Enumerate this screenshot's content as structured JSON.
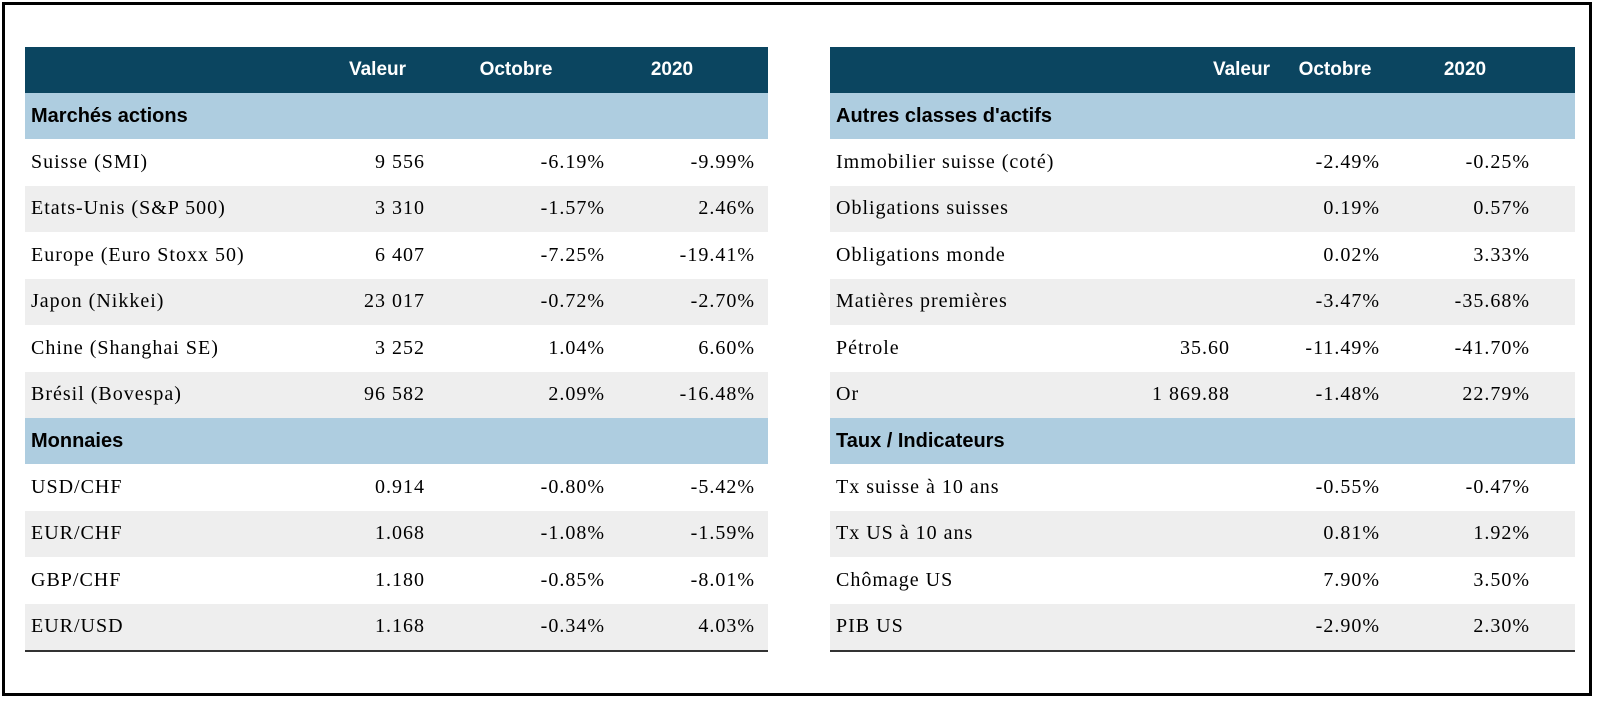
{
  "headers": {
    "value": "Valeur",
    "month": "Octobre",
    "year": "2020"
  },
  "left": {
    "sections": [
      {
        "title": "Marchés actions",
        "rows": [
          {
            "label": "Suisse (SMI)",
            "value": "9 556",
            "month": "-6.19%",
            "year": "-9.99%"
          },
          {
            "label": "Etats-Unis (S&P 500)",
            "value": "3 310",
            "month": "-1.57%",
            "year": "2.46%"
          },
          {
            "label": "Europe (Euro Stoxx 50)",
            "value": "6 407",
            "month": "-7.25%",
            "year": "-19.41%"
          },
          {
            "label": "Japon (Nikkei)",
            "value": "23 017",
            "month": "-0.72%",
            "year": "-2.70%"
          },
          {
            "label": "Chine (Shanghai SE)",
            "value": "3 252",
            "month": "1.04%",
            "year": "6.60%"
          },
          {
            "label": "Brésil (Bovespa)",
            "value": "96 582",
            "month": "2.09%",
            "year": "-16.48%"
          }
        ]
      },
      {
        "title": "Monnaies",
        "rows": [
          {
            "label": "USD/CHF",
            "value": "0.914",
            "month": "-0.80%",
            "year": "-5.42%"
          },
          {
            "label": "EUR/CHF",
            "value": "1.068",
            "month": "-1.08%",
            "year": "-1.59%"
          },
          {
            "label": "GBP/CHF",
            "value": "1.180",
            "month": "-0.85%",
            "year": "-8.01%"
          },
          {
            "label": "EUR/USD",
            "value": "1.168",
            "month": "-0.34%",
            "year": "4.03%"
          }
        ]
      }
    ]
  },
  "right": {
    "sections": [
      {
        "title": "Autres classes d'actifs",
        "rows": [
          {
            "label": "Immobilier suisse (coté)",
            "value": "",
            "month": "-2.49%",
            "year": "-0.25%"
          },
          {
            "label": "Obligations suisses",
            "value": "",
            "month": "0.19%",
            "year": "0.57%"
          },
          {
            "label": "Obligations monde",
            "value": "",
            "month": "0.02%",
            "year": "3.33%"
          },
          {
            "label": "Matières premières",
            "value": "",
            "month": "-3.47%",
            "year": "-35.68%"
          },
          {
            "label": "Pétrole",
            "value": "35.60",
            "month": "-11.49%",
            "year": "-41.70%"
          },
          {
            "label": "Or",
            "value": "1 869.88",
            "month": "-1.48%",
            "year": "22.79%"
          }
        ]
      },
      {
        "title": "Taux / Indicateurs",
        "rows": [
          {
            "label": "Tx suisse à 10 ans",
            "value": "",
            "month": "-0.55%",
            "year": "-0.47%"
          },
          {
            "label": "Tx US à 10 ans",
            "value": "",
            "month": "0.81%",
            "year": "1.92%"
          },
          {
            "label": "Chômage US",
            "value": "",
            "month": "7.90%",
            "year": "3.50%"
          },
          {
            "label": "PIB US",
            "value": "",
            "month": "-2.90%",
            "year": "2.30%"
          }
        ]
      }
    ]
  }
}
